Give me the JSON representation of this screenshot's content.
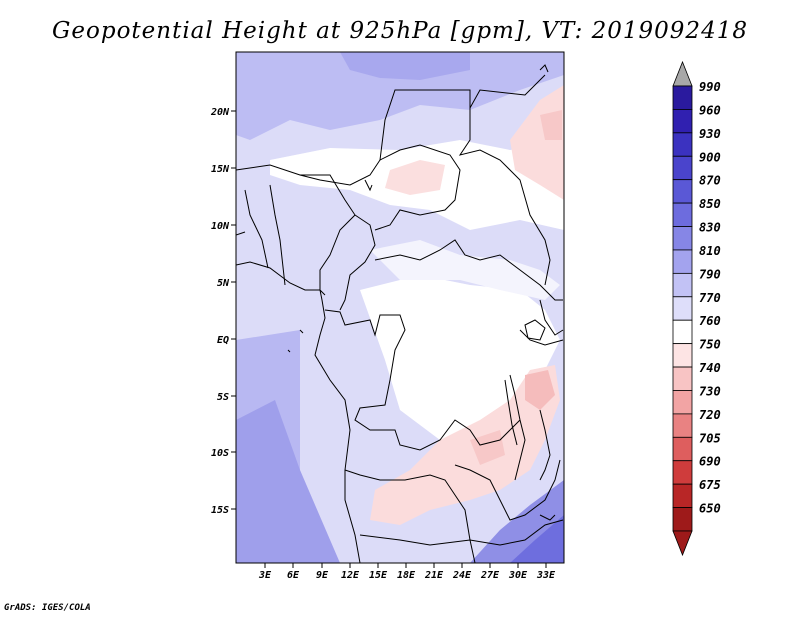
{
  "title": "Geopotential Height at 925hPa [gpm], VT: 2019092418",
  "credit": "GrADS: IGES/COLA",
  "lon_ticks": [
    "3E",
    "6E",
    "9E",
    "12E",
    "15E",
    "18E",
    "21E",
    "24E",
    "27E",
    "30E",
    "33E"
  ],
  "lat_ticks": [
    "20N",
    "15N",
    "10N",
    "5N",
    "EQ",
    "5S",
    "10S",
    "15S"
  ],
  "colorbar": {
    "levels": [
      "990",
      "960",
      "930",
      "900",
      "870",
      "850",
      "830",
      "810",
      "790",
      "770",
      "760",
      "750",
      "740",
      "730",
      "720",
      "705",
      "690",
      "675",
      "650"
    ],
    "colors": [
      "#2a1a9e",
      "#3020b0",
      "#3b32c0",
      "#4a44cc",
      "#5a58d6",
      "#6d6cde",
      "#8686e6",
      "#a3a3ee",
      "#c2c2f5",
      "#dedefa",
      "#ffffff",
      "#fde4e4",
      "#f8c4c4",
      "#f2a4a4",
      "#e98282",
      "#de5e5e",
      "#cf3c3c",
      "#b82626",
      "#9e1a1a"
    ],
    "top_arrow_color": "#a8a8a8",
    "bottom_arrow_color": "#9e1a1a"
  }
}
